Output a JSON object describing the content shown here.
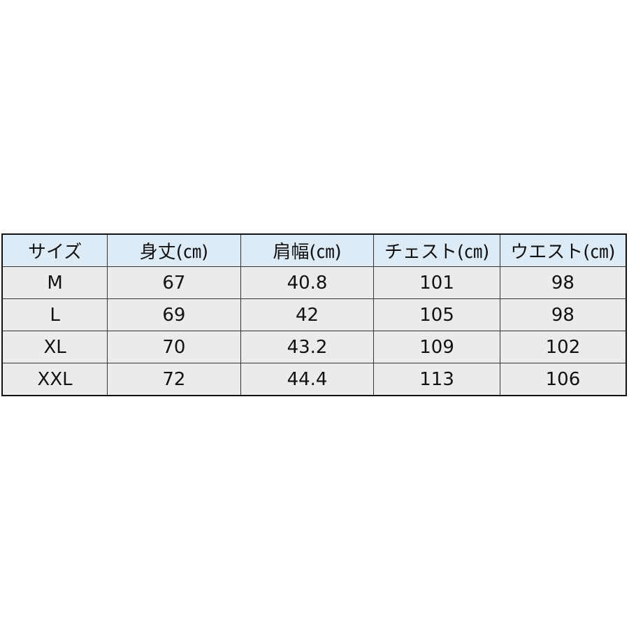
{
  "table": {
    "headers": [
      "サイズ",
      "身丈(㎝)",
      "肩幅(㎝)",
      "チェスト(㎝)",
      "ウエスト(㎝)"
    ],
    "rows": [
      [
        "M",
        "67",
        "40.8",
        "101",
        "98"
      ],
      [
        "L",
        "69",
        "42",
        "105",
        "98"
      ],
      [
        "XL",
        "70",
        "43.2",
        "109",
        "102"
      ],
      [
        "XXL",
        "72",
        "44.4",
        "113",
        "106"
      ]
    ]
  },
  "colors": {
    "header_bg": "#ddebf7",
    "row_bg": "#ebebeb"
  }
}
